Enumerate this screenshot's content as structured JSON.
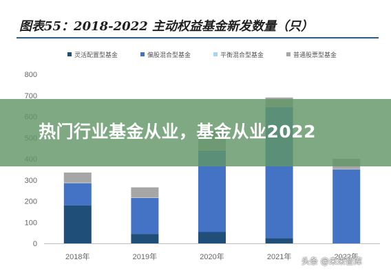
{
  "chart_data": {
    "type": "bar",
    "stacked": true,
    "title": "图表55：2018-2022 主动权益基金新发数量（只）",
    "categories": [
      "2018年",
      "2019年",
      "2020年",
      "2021年",
      "2022年"
    ],
    "series": [
      {
        "name": "灵活配置型基金",
        "color": "#1f4e79",
        "values": [
          180,
          45,
          55,
          25,
          0
        ]
      },
      {
        "name": "偏股混合型基金",
        "color": "#4472c4",
        "values": [
          105,
          170,
          385,
          620,
          350
        ]
      },
      {
        "name": "平衡混合型基金",
        "color": "#a9d3ef",
        "values": [
          3,
          2,
          2,
          2,
          2
        ]
      },
      {
        "name": "普通股票型基金",
        "color": "#a6a6a6",
        "values": [
          47,
          48,
          93,
          43,
          48
        ]
      }
    ],
    "yticks": [
      "0",
      "100",
      "200",
      "300",
      "400",
      "500",
      "600",
      "700",
      "800"
    ],
    "ylim": [
      0,
      800
    ],
    "legend_position": "top",
    "grid": false
  },
  "banner": {
    "text": "热门行业基金从业，基金从业2022"
  },
  "watermark": {
    "text": "头条 @未来智库"
  }
}
